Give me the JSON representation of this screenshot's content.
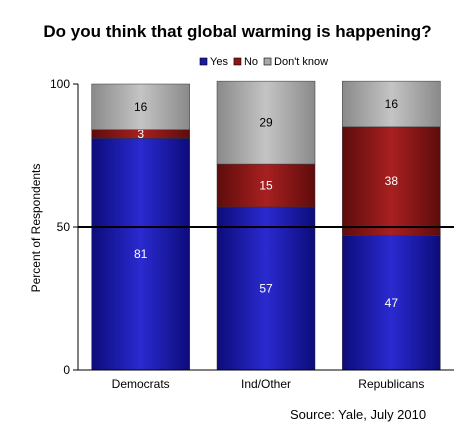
{
  "chart_data": {
    "type": "bar",
    "stacked": true,
    "title": "Do you think that global warming is happening?",
    "ylabel": "Percent of Respondents",
    "xlabel": "",
    "ylim": [
      0,
      100
    ],
    "yticks": [
      0,
      50,
      100
    ],
    "reference_line": 50,
    "legend_position": "top",
    "categories": [
      "Democrats",
      "Ind/Other",
      "Republicans"
    ],
    "series": [
      {
        "name": "Yes",
        "values": [
          81,
          57,
          47
        ],
        "color": "#1a1aa8"
      },
      {
        "name": "No",
        "values": [
          3,
          15,
          38
        ],
        "color": "#8e1616"
      },
      {
        "name": "Don't know",
        "values": [
          16,
          29,
          16
        ],
        "color": "#a9a9a9"
      }
    ],
    "source": "Source: Yale, July 2010"
  }
}
